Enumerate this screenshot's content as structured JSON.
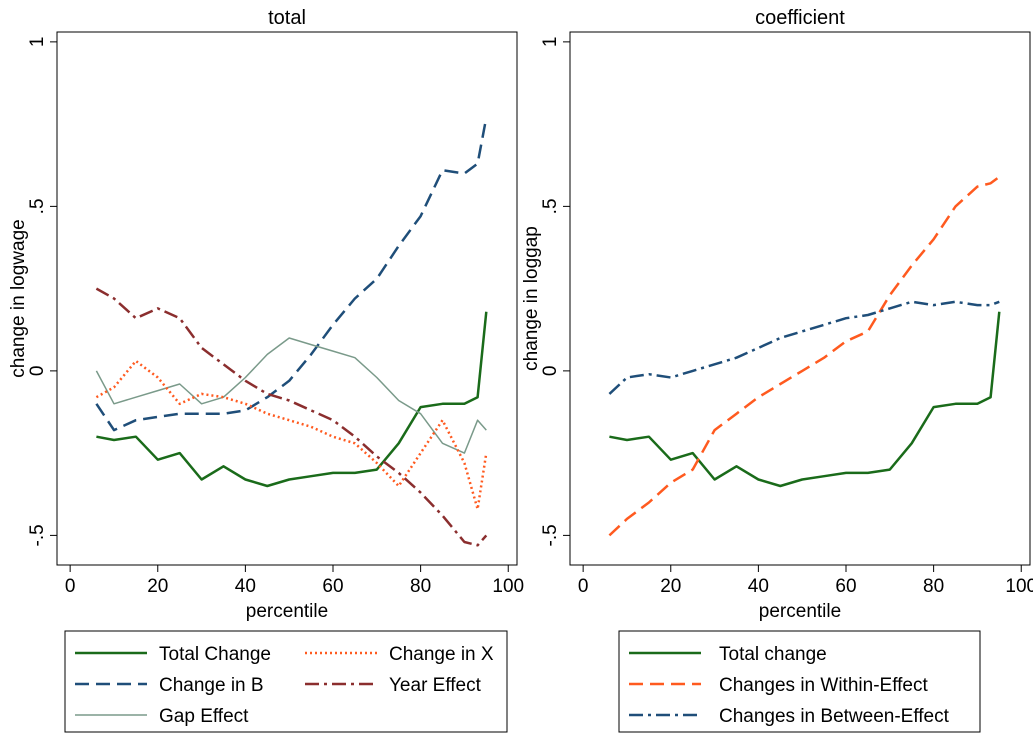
{
  "chart_data": [
    {
      "type": "line",
      "title": "total",
      "xlabel": "percentile",
      "ylabel": "change in logwage",
      "xlim": [
        -3,
        102
      ],
      "ylim": [
        -0.59,
        1.03
      ],
      "xticks": [
        0,
        20,
        40,
        60,
        80,
        100
      ],
      "xtick_labels": [
        "0",
        "20",
        "40",
        "60",
        "80",
        "100"
      ],
      "yticks": [
        -0.5,
        0,
        0.5,
        1
      ],
      "ytick_labels": [
        "-.5",
        "0",
        ".5",
        "1"
      ],
      "grid": false,
      "legend_placement": "bottom",
      "x": [
        6,
        10,
        15,
        20,
        25,
        30,
        35,
        40,
        45,
        50,
        55,
        60,
        65,
        70,
        75,
        80,
        85,
        90,
        93,
        95
      ],
      "series": [
        {
          "name": "Total Change",
          "color": "#1a6b1a",
          "dash": "solid",
          "width": 2.5,
          "values": [
            -0.2,
            -0.21,
            -0.2,
            -0.27,
            -0.25,
            -0.33,
            -0.29,
            -0.33,
            -0.35,
            -0.33,
            -0.32,
            -0.31,
            -0.31,
            -0.3,
            -0.22,
            -0.11,
            -0.1,
            -0.1,
            -0.08,
            0.18
          ]
        },
        {
          "name": "Change in B",
          "color": "#1f4e79",
          "dash": "dashed",
          "width": 2.5,
          "values": [
            -0.1,
            -0.18,
            -0.15,
            -0.14,
            -0.13,
            -0.13,
            -0.13,
            -0.12,
            -0.08,
            -0.03,
            0.05,
            0.14,
            0.22,
            0.28,
            0.38,
            0.47,
            0.61,
            0.6,
            0.63,
            0.77
          ]
        },
        {
          "name": "Gap Effect",
          "color": "#7a9a8a",
          "dash": "solid",
          "width": 1.5,
          "values": [
            0,
            -0.1,
            -0.08,
            -0.06,
            -0.04,
            -0.1,
            -0.08,
            -0.02,
            0.05,
            0.1,
            0.08,
            0.06,
            0.04,
            -0.02,
            -0.09,
            -0.13,
            -0.22,
            -0.25,
            -0.15,
            -0.18
          ]
        },
        {
          "name": "Change in X",
          "color": "#ff5a1f",
          "dash": "dotted",
          "width": 2.5,
          "values": [
            -0.08,
            -0.05,
            0.03,
            -0.02,
            -0.1,
            -0.07,
            -0.08,
            -0.1,
            -0.13,
            -0.15,
            -0.17,
            -0.2,
            -0.22,
            -0.28,
            -0.35,
            -0.25,
            -0.15,
            -0.28,
            -0.42,
            -0.25
          ]
        },
        {
          "name": "Year Effect",
          "color": "#8b2e2e",
          "dash": "dashdot",
          "width": 2.5,
          "values": [
            0.25,
            0.22,
            0.16,
            0.19,
            0.16,
            0.07,
            0.02,
            -0.03,
            -0.07,
            -0.09,
            -0.12,
            -0.15,
            -0.2,
            -0.26,
            -0.31,
            -0.37,
            -0.44,
            -0.52,
            -0.53,
            -0.5
          ]
        }
      ],
      "legend": [
        {
          "name": "Total Change",
          "series_index": 0
        },
        {
          "name": "Change in X",
          "series_index": 3
        },
        {
          "name": "Change in B",
          "series_index": 1
        },
        {
          "name": "Year Effect",
          "series_index": 4
        },
        {
          "name": "Gap Effect",
          "series_index": 2
        }
      ]
    },
    {
      "type": "line",
      "title": "coefficient",
      "xlabel": "percentile",
      "ylabel": "change in loggap",
      "xlim": [
        -3,
        102
      ],
      "ylim": [
        -0.59,
        1.03
      ],
      "xticks": [
        0,
        20,
        40,
        60,
        80,
        100
      ],
      "xtick_labels": [
        "0",
        "20",
        "40",
        "60",
        "80",
        "100"
      ],
      "yticks": [
        -0.5,
        0,
        0.5,
        1
      ],
      "ytick_labels": [
        "-.5",
        "0",
        ".5",
        "1"
      ],
      "grid": false,
      "legend_placement": "bottom",
      "x": [
        6,
        10,
        15,
        20,
        25,
        30,
        35,
        40,
        45,
        50,
        55,
        60,
        65,
        70,
        75,
        80,
        85,
        90,
        93,
        95
      ],
      "series": [
        {
          "name": "Total change",
          "color": "#1a6b1a",
          "dash": "solid",
          "width": 2.5,
          "values": [
            -0.2,
            -0.21,
            -0.2,
            -0.27,
            -0.25,
            -0.33,
            -0.29,
            -0.33,
            -0.35,
            -0.33,
            -0.32,
            -0.31,
            -0.31,
            -0.3,
            -0.22,
            -0.11,
            -0.1,
            -0.1,
            -0.08,
            0.18
          ]
        },
        {
          "name": "Changes in Within-Effect",
          "color": "#ff5a1f",
          "dash": "dashed",
          "width": 2.5,
          "values": [
            -0.5,
            -0.45,
            -0.4,
            -0.34,
            -0.3,
            -0.18,
            -0.13,
            -0.08,
            -0.04,
            0,
            0.04,
            0.09,
            0.12,
            0.23,
            0.32,
            0.4,
            0.5,
            0.56,
            0.57,
            0.59
          ]
        },
        {
          "name": "Changes in Between-Effect",
          "color": "#1f4e79",
          "dash": "dashdot",
          "width": 2.5,
          "values": [
            -0.07,
            -0.02,
            -0.01,
            -0.02,
            0,
            0.02,
            0.04,
            0.07,
            0.1,
            0.12,
            0.14,
            0.16,
            0.17,
            0.19,
            0.21,
            0.2,
            0.21,
            0.2,
            0.2,
            0.21
          ]
        }
      ],
      "legend": [
        {
          "name": "Total change",
          "series_index": 0
        },
        {
          "name": "Changes in Within-Effect",
          "series_index": 1
        },
        {
          "name": "Changes in Between-Effect",
          "series_index": 2
        }
      ]
    }
  ]
}
